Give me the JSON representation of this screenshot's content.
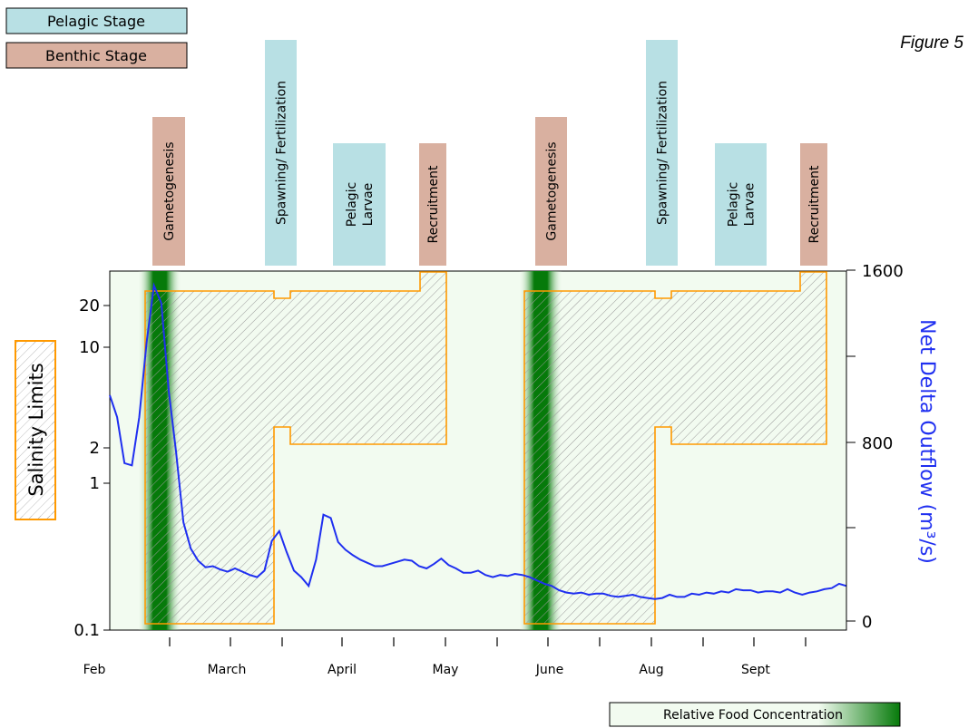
{
  "figure_label": "Figure 5",
  "legend": {
    "pelagic_label": "Pelagic Stage",
    "benthic_label": "Benthic Stage",
    "pelagic_color": "#b8e0e4",
    "benthic_color": "#d9b0a0",
    "food_label": "Relative Food Concentration",
    "food_color_dark": "#067a0a",
    "food_color_light": "#f2fbf0"
  },
  "colors": {
    "background": "#f2fbf0",
    "salinity_outline": "#ff9900",
    "flow_line": "#1f2ff0",
    "ylabel_right": "#1f2ff0"
  },
  "stage_boxes": [
    {
      "label": "Gametogenesis",
      "stage": "benthic",
      "cycle": 1
    },
    {
      "label": "Spawning/ Fertilization",
      "stage": "pelagic",
      "cycle": 1
    },
    {
      "label": "Pelagic Larvae",
      "stage": "pelagic",
      "cycle": 1
    },
    {
      "label": "Recruitment",
      "stage": "benthic",
      "cycle": 1
    },
    {
      "label": "Gametogenesis",
      "stage": "benthic",
      "cycle": 2
    },
    {
      "label": "Spawning/ Fertilization",
      "stage": "pelagic",
      "cycle": 2
    },
    {
      "label": "Pelagic Larvae",
      "stage": "pelagic",
      "cycle": 2
    },
    {
      "label": "Recruitment",
      "stage": "benthic",
      "cycle": 2
    }
  ],
  "chart_data": {
    "type": "line",
    "title": "",
    "ylabel_left": "Salinity Limits",
    "ylabel_right": "Net Delta Outflow (m³/s)",
    "y_left_scale": "log",
    "y_left_ticks": [
      "0.1",
      "1",
      "2",
      "10",
      "20"
    ],
    "y_right_ticks": [
      "0",
      "800",
      "1600"
    ],
    "ylim_right": [
      0,
      1600
    ],
    "x_tick_labels": [
      "Feb",
      "March",
      "April",
      "May",
      "June",
      "Aug",
      "Sept"
    ],
    "grid": false,
    "series": [
      {
        "kind": "flow",
        "x": [
          0,
          1,
          2,
          3,
          4,
          5,
          6,
          7,
          8,
          9,
          10,
          11,
          12,
          13,
          14,
          15,
          16,
          17,
          18,
          19,
          20,
          21,
          22,
          23,
          24,
          25,
          26,
          27,
          28,
          29,
          30,
          31,
          32,
          33,
          34,
          35,
          36,
          37,
          38,
          39,
          40,
          41,
          42,
          43,
          44,
          45,
          46,
          47,
          48,
          49,
          50,
          51,
          52,
          53,
          54,
          55,
          56,
          57,
          58,
          59,
          60,
          61,
          62,
          63,
          64,
          65,
          66,
          67,
          68,
          69,
          70,
          71,
          72,
          73,
          74,
          75,
          76,
          77,
          78,
          79,
          80,
          81,
          82,
          83,
          84,
          85,
          86,
          87,
          88,
          89,
          90,
          91,
          92,
          93,
          94,
          95,
          96,
          97,
          98,
          99,
          100
        ],
        "values": [
          1030,
          930,
          720,
          710,
          930,
          1270,
          1530,
          1450,
          1050,
          770,
          450,
          330,
          275,
          245,
          250,
          235,
          225,
          240,
          225,
          210,
          200,
          230,
          365,
          410,
          315,
          230,
          200,
          160,
          280,
          485,
          470,
          360,
          325,
          300,
          280,
          265,
          250,
          250,
          260,
          270,
          280,
          275,
          250,
          240,
          260,
          285,
          255,
          240,
          220,
          220,
          230,
          210,
          200,
          210,
          205,
          215,
          210,
          200,
          185,
          170,
          160,
          140,
          130,
          125,
          130,
          120,
          125,
          125,
          115,
          110,
          115,
          120,
          110,
          105,
          100,
          105,
          120,
          110,
          110,
          125,
          120,
          130,
          125,
          135,
          130,
          145,
          140,
          140,
          130,
          135,
          135,
          130,
          145,
          130,
          120,
          130,
          135,
          145,
          150,
          170,
          160
        ]
      },
      {
        "kind": "salinity_upper",
        "note": "shaded salinity tolerance envelope (upper limit)",
        "x_months": [
          "Feb",
          "March",
          "April",
          "May",
          "June",
          "Aug",
          "Sept"
        ],
        "values": [
          20,
          20,
          20,
          30,
          20,
          20,
          30
        ]
      }
    ]
  }
}
